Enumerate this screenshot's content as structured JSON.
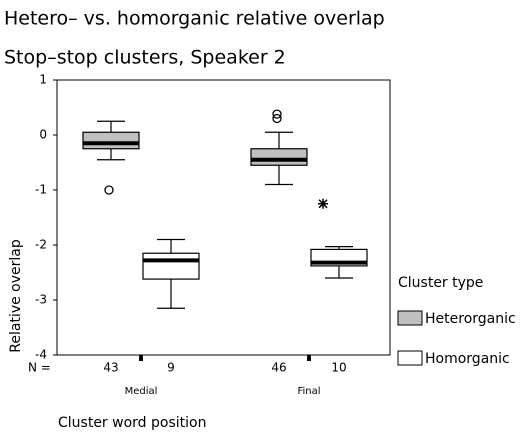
{
  "chart_data": {
    "type": "box",
    "title": "Hetero– vs. homorganic relative overlap",
    "subtitle": "Stop–stop clusters, Speaker 2",
    "x_label": "Cluster word position",
    "y_label": "Relative overlap",
    "categories": [
      "Medial",
      "Final"
    ],
    "n_prefix": "N =",
    "ylim": [
      -4,
      1
    ],
    "yticks": [
      -4,
      -3,
      -2,
      -1,
      0,
      1
    ],
    "legend_title": "Cluster type",
    "legend": "right",
    "series": [
      {
        "name": "Heterorganic",
        "color": "#c0c0c0",
        "n": [
          43,
          46
        ],
        "whisker_low": [
          -0.45,
          -0.9
        ],
        "q1": [
          -0.25,
          -0.55
        ],
        "median": [
          -0.15,
          -0.45
        ],
        "q3": [
          0.05,
          -0.25
        ],
        "whisker_high": [
          0.25,
          0.05
        ],
        "outliers": [
          [
            -1
          ],
          [
            0.38,
            0.3
          ]
        ],
        "extremes": [
          [],
          []
        ]
      },
      {
        "name": "Homorganic",
        "color": "#ffffff",
        "n": [
          9,
          10
        ],
        "whisker_low": [
          -3.15,
          -2.6
        ],
        "q1": [
          -2.62,
          -2.38
        ],
        "median": [
          -2.28,
          -2.32
        ],
        "q3": [
          -2.15,
          -2.08
        ],
        "whisker_high": [
          -1.9,
          -2.03
        ],
        "outliers": [
          [],
          []
        ],
        "extremes": [
          [],
          [
            -1.25
          ]
        ]
      }
    ]
  }
}
